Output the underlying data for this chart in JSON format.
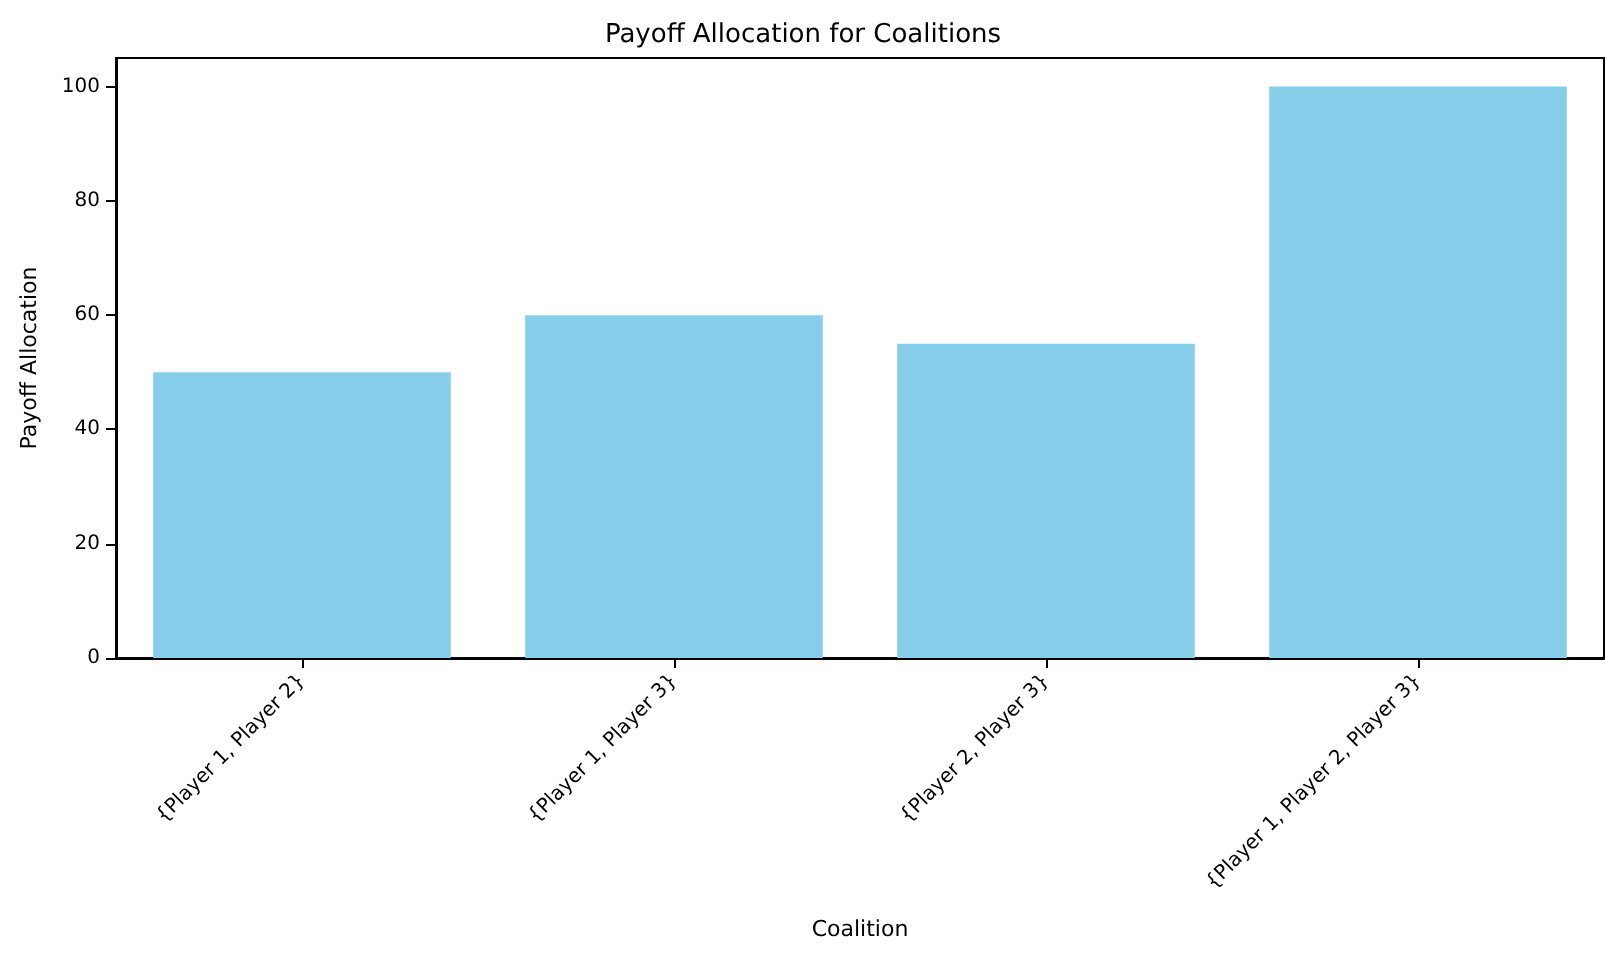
{
  "chart_data": {
    "type": "bar",
    "title": "Payoff Allocation for Coalitions",
    "xlabel": "Coalition",
    "ylabel": "Payoff Allocation",
    "categories": [
      "{Player 1, Player 2}",
      "{Player 1, Player 3}",
      "{Player 2, Player 3}",
      "{Player 1, Player 2, Player 3}"
    ],
    "values": [
      50,
      60,
      55,
      100
    ],
    "color": "#87ceeb",
    "ylim": [
      0,
      105
    ],
    "yticks": [
      0,
      20,
      40,
      60,
      80,
      100
    ],
    "grid": false
  }
}
